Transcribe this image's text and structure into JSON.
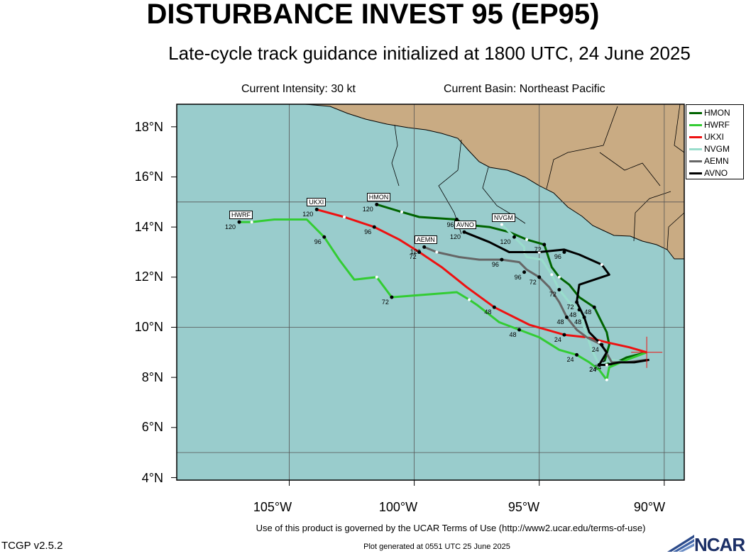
{
  "header": {
    "title": "DISTURBANCE INVEST 95 (EP95)",
    "subtitle": "Late-cycle track guidance initialized at 1800 UTC, 24 June 2025",
    "intensity": "Current Intensity: 30 kt",
    "basin": "Current Basin: Northeast Pacific"
  },
  "axes": {
    "y_labels": [
      "18°N",
      "16°N",
      "14°N",
      "12°N",
      "10°N",
      "8°N",
      "6°N",
      "4°N"
    ],
    "x_labels": [
      "105°W",
      "100°W",
      "95°W",
      "90°W"
    ]
  },
  "colors": {
    "ocean": "#99cccc",
    "land": "#c9ab83",
    "HMON": "#006400",
    "HWRF": "#33cc33",
    "UKXI": "#ee1111",
    "NVGM": "#99ddcc",
    "AEMN": "#666666",
    "AVNO": "#000000"
  },
  "legend": [
    {
      "name": "HMON",
      "color": "#006400"
    },
    {
      "name": "HWRF",
      "color": "#33cc33"
    },
    {
      "name": "UKXI",
      "color": "#ee1111"
    },
    {
      "name": "NVGM",
      "color": "#99ddcc"
    },
    {
      "name": "AEMN",
      "color": "#666666"
    },
    {
      "name": "AVNO",
      "color": "#000000"
    }
  ],
  "tracks": [
    {
      "model": "HMON",
      "points": [
        [
          -90.7,
          9.0
        ],
        [
          -91.5,
          8.8
        ],
        [
          -92.1,
          8.5
        ],
        [
          -92.4,
          8.6
        ],
        [
          -92.2,
          9.3
        ],
        [
          -92.3,
          9.8
        ],
        [
          -92.8,
          10.8
        ],
        [
          -93.4,
          11.2
        ],
        [
          -93.8,
          11.7
        ],
        [
          -94.2,
          12.0
        ],
        [
          -94.5,
          12.4
        ],
        [
          -94.8,
          13.3
        ],
        [
          -95.5,
          13.5
        ],
        [
          -96.2,
          13.8
        ],
        [
          -97.0,
          14.0
        ],
        [
          -98.0,
          14.1
        ],
        [
          -98.3,
          14.3
        ],
        [
          -99.8,
          14.4
        ],
        [
          -100.5,
          14.6
        ],
        [
          -101.5,
          14.9
        ]
      ],
      "labels": [
        {
          "text": "24",
          "at": [
            -92.4,
            8.6
          ]
        },
        {
          "text": "48",
          "at": [
            -92.8,
            10.8
          ]
        },
        {
          "text": "72",
          "at": [
            -94.8,
            13.3
          ]
        },
        {
          "text": "96",
          "at": [
            -98.3,
            14.3
          ]
        },
        {
          "text": "120",
          "at": [
            -101.5,
            14.9
          ]
        }
      ]
    },
    {
      "model": "HWRF",
      "points": [
        [
          -90.7,
          9.0
        ],
        [
          -91.5,
          8.7
        ],
        [
          -92.2,
          8.4
        ],
        [
          -92.3,
          7.9
        ],
        [
          -92.6,
          8.3
        ],
        [
          -93.0,
          8.6
        ],
        [
          -93.5,
          8.9
        ],
        [
          -94.2,
          9.1
        ],
        [
          -95.0,
          9.6
        ],
        [
          -95.8,
          9.9
        ],
        [
          -96.6,
          10.2
        ],
        [
          -97.5,
          10.9
        ],
        [
          -97.8,
          11.1
        ],
        [
          -98.3,
          11.4
        ],
        [
          -100.9,
          11.2
        ],
        [
          -101.5,
          12.0
        ],
        [
          -102.4,
          11.9
        ],
        [
          -103.0,
          12.7
        ],
        [
          -103.6,
          13.6
        ],
        [
          -104.3,
          14.3
        ],
        [
          -105.6,
          14.3
        ],
        [
          -106.5,
          14.2
        ],
        [
          -107.0,
          14.2
        ]
      ],
      "labels": [
        {
          "text": "24",
          "at": [
            -93.5,
            8.9
          ]
        },
        {
          "text": "48",
          "at": [
            -95.8,
            9.9
          ]
        },
        {
          "text": "72",
          "at": [
            -100.9,
            11.2
          ]
        },
        {
          "text": "96",
          "at": [
            -103.6,
            13.6
          ]
        },
        {
          "text": "120",
          "at": [
            -107.0,
            14.2
          ]
        }
      ]
    },
    {
      "model": "UKXI",
      "points": [
        [
          -90.7,
          9.0
        ],
        [
          -91.4,
          9.2
        ],
        [
          -92.3,
          9.4
        ],
        [
          -93.1,
          9.6
        ],
        [
          -94.0,
          9.7
        ],
        [
          -95.4,
          10.1
        ],
        [
          -96.8,
          10.8
        ],
        [
          -97.9,
          11.6
        ],
        [
          -98.9,
          12.4
        ],
        [
          -99.8,
          13.0
        ],
        [
          -100.6,
          13.5
        ],
        [
          -101.6,
          14.0
        ],
        [
          -102.8,
          14.4
        ],
        [
          -103.9,
          14.7
        ]
      ],
      "labels": [
        {
          "text": "24",
          "at": [
            -94.0,
            9.7
          ]
        },
        {
          "text": "48",
          "at": [
            -96.8,
            10.8
          ]
        },
        {
          "text": "72",
          "at": [
            -99.8,
            13.0
          ]
        },
        {
          "text": "96",
          "at": [
            -101.6,
            14.0
          ]
        },
        {
          "text": "120",
          "at": [
            -103.9,
            14.7
          ]
        }
      ]
    },
    {
      "model": "NVGM",
      "points": [
        [
          -90.7,
          8.7
        ],
        [
          -91.6,
          8.6
        ],
        [
          -92.1,
          8.7
        ],
        [
          -92.6,
          8.5
        ],
        [
          -92.9,
          9.1
        ],
        [
          -93.2,
          10.0
        ],
        [
          -93.4,
          10.7
        ],
        [
          -93.8,
          11.0
        ],
        [
          -94.2,
          11.5
        ],
        [
          -94.5,
          12.1
        ],
        [
          -94.9,
          12.7
        ],
        [
          -95.5,
          12.8
        ],
        [
          -95.6,
          13.0
        ],
        [
          -95.6,
          13.2
        ],
        [
          -96.0,
          13.6
        ],
        [
          -96.5,
          14.1
        ]
      ],
      "labels": [
        {
          "text": "24",
          "at": [
            -92.6,
            8.5
          ]
        },
        {
          "text": "48",
          "at": [
            -93.4,
            10.7
          ]
        },
        {
          "text": "72",
          "at": [
            -94.2,
            11.5
          ]
        },
        {
          "text": "96",
          "at": [
            -95.6,
            12.2
          ]
        },
        {
          "text": "120",
          "at": [
            -96.0,
            13.6
          ]
        }
      ]
    },
    {
      "model": "AEMN",
      "points": [
        [
          -90.7,
          8.7
        ],
        [
          -91.5,
          8.6
        ],
        [
          -92.1,
          8.6
        ],
        [
          -92.5,
          9.3
        ],
        [
          -93.1,
          9.6
        ],
        [
          -93.5,
          9.9
        ],
        [
          -93.9,
          10.4
        ],
        [
          -94.2,
          11.0
        ],
        [
          -94.6,
          11.6
        ],
        [
          -95.0,
          12.0
        ],
        [
          -95.5,
          12.3
        ],
        [
          -95.8,
          12.6
        ],
        [
          -96.5,
          12.7
        ],
        [
          -97.4,
          12.7
        ],
        [
          -98.2,
          12.8
        ],
        [
          -99.1,
          13.0
        ],
        [
          -99.6,
          13.2
        ]
      ],
      "labels": [
        {
          "text": "24",
          "at": [
            -92.5,
            9.3
          ]
        },
        {
          "text": "48",
          "at": [
            -93.9,
            10.4
          ]
        },
        {
          "text": "72",
          "at": [
            -95.0,
            12.0
          ]
        },
        {
          "text": "96",
          "at": [
            -96.5,
            12.7
          ]
        },
        {
          "text": "120",
          "at": [
            -99.6,
            13.2
          ]
        }
      ]
    },
    {
      "model": "AVNO",
      "points": [
        [
          -90.6,
          8.7
        ],
        [
          -91.2,
          8.6
        ],
        [
          -91.8,
          8.6
        ],
        [
          -92.3,
          8.5
        ],
        [
          -92.6,
          8.5
        ],
        [
          -92.3,
          9.0
        ],
        [
          -92.6,
          9.4
        ],
        [
          -93.0,
          9.8
        ],
        [
          -93.2,
          10.4
        ],
        [
          -93.5,
          11.0
        ],
        [
          -93.4,
          11.7
        ],
        [
          -92.2,
          12.1
        ],
        [
          -92.5,
          12.5
        ],
        [
          -93.4,
          12.9
        ],
        [
          -94.0,
          13.1
        ],
        [
          -95.0,
          13.0
        ],
        [
          -96.2,
          13.0
        ],
        [
          -97.0,
          13.4
        ],
        [
          -98.0,
          13.8
        ]
      ],
      "labels": [
        {
          "text": "24",
          "at": [
            -92.6,
            8.5
          ]
        },
        {
          "text": "48",
          "at": [
            -93.2,
            10.4
          ]
        },
        {
          "text": "72",
          "at": [
            -93.5,
            11.0
          ]
        },
        {
          "text": "96",
          "at": [
            -94.0,
            13.0
          ]
        },
        {
          "text": "120",
          "at": [
            -98.0,
            13.8
          ]
        }
      ]
    }
  ],
  "current_position": {
    "lon": -90.7,
    "lat": 9.0
  },
  "footer": {
    "terms": "Use of this product is governed by the UCAR Terms of Use (http://www2.ucar.edu/terms-of-use)",
    "version": "TCGP v2.5.2",
    "generated": "Plot generated at 0551 UTC   25 June 2025",
    "logo_text": "NCAR"
  }
}
